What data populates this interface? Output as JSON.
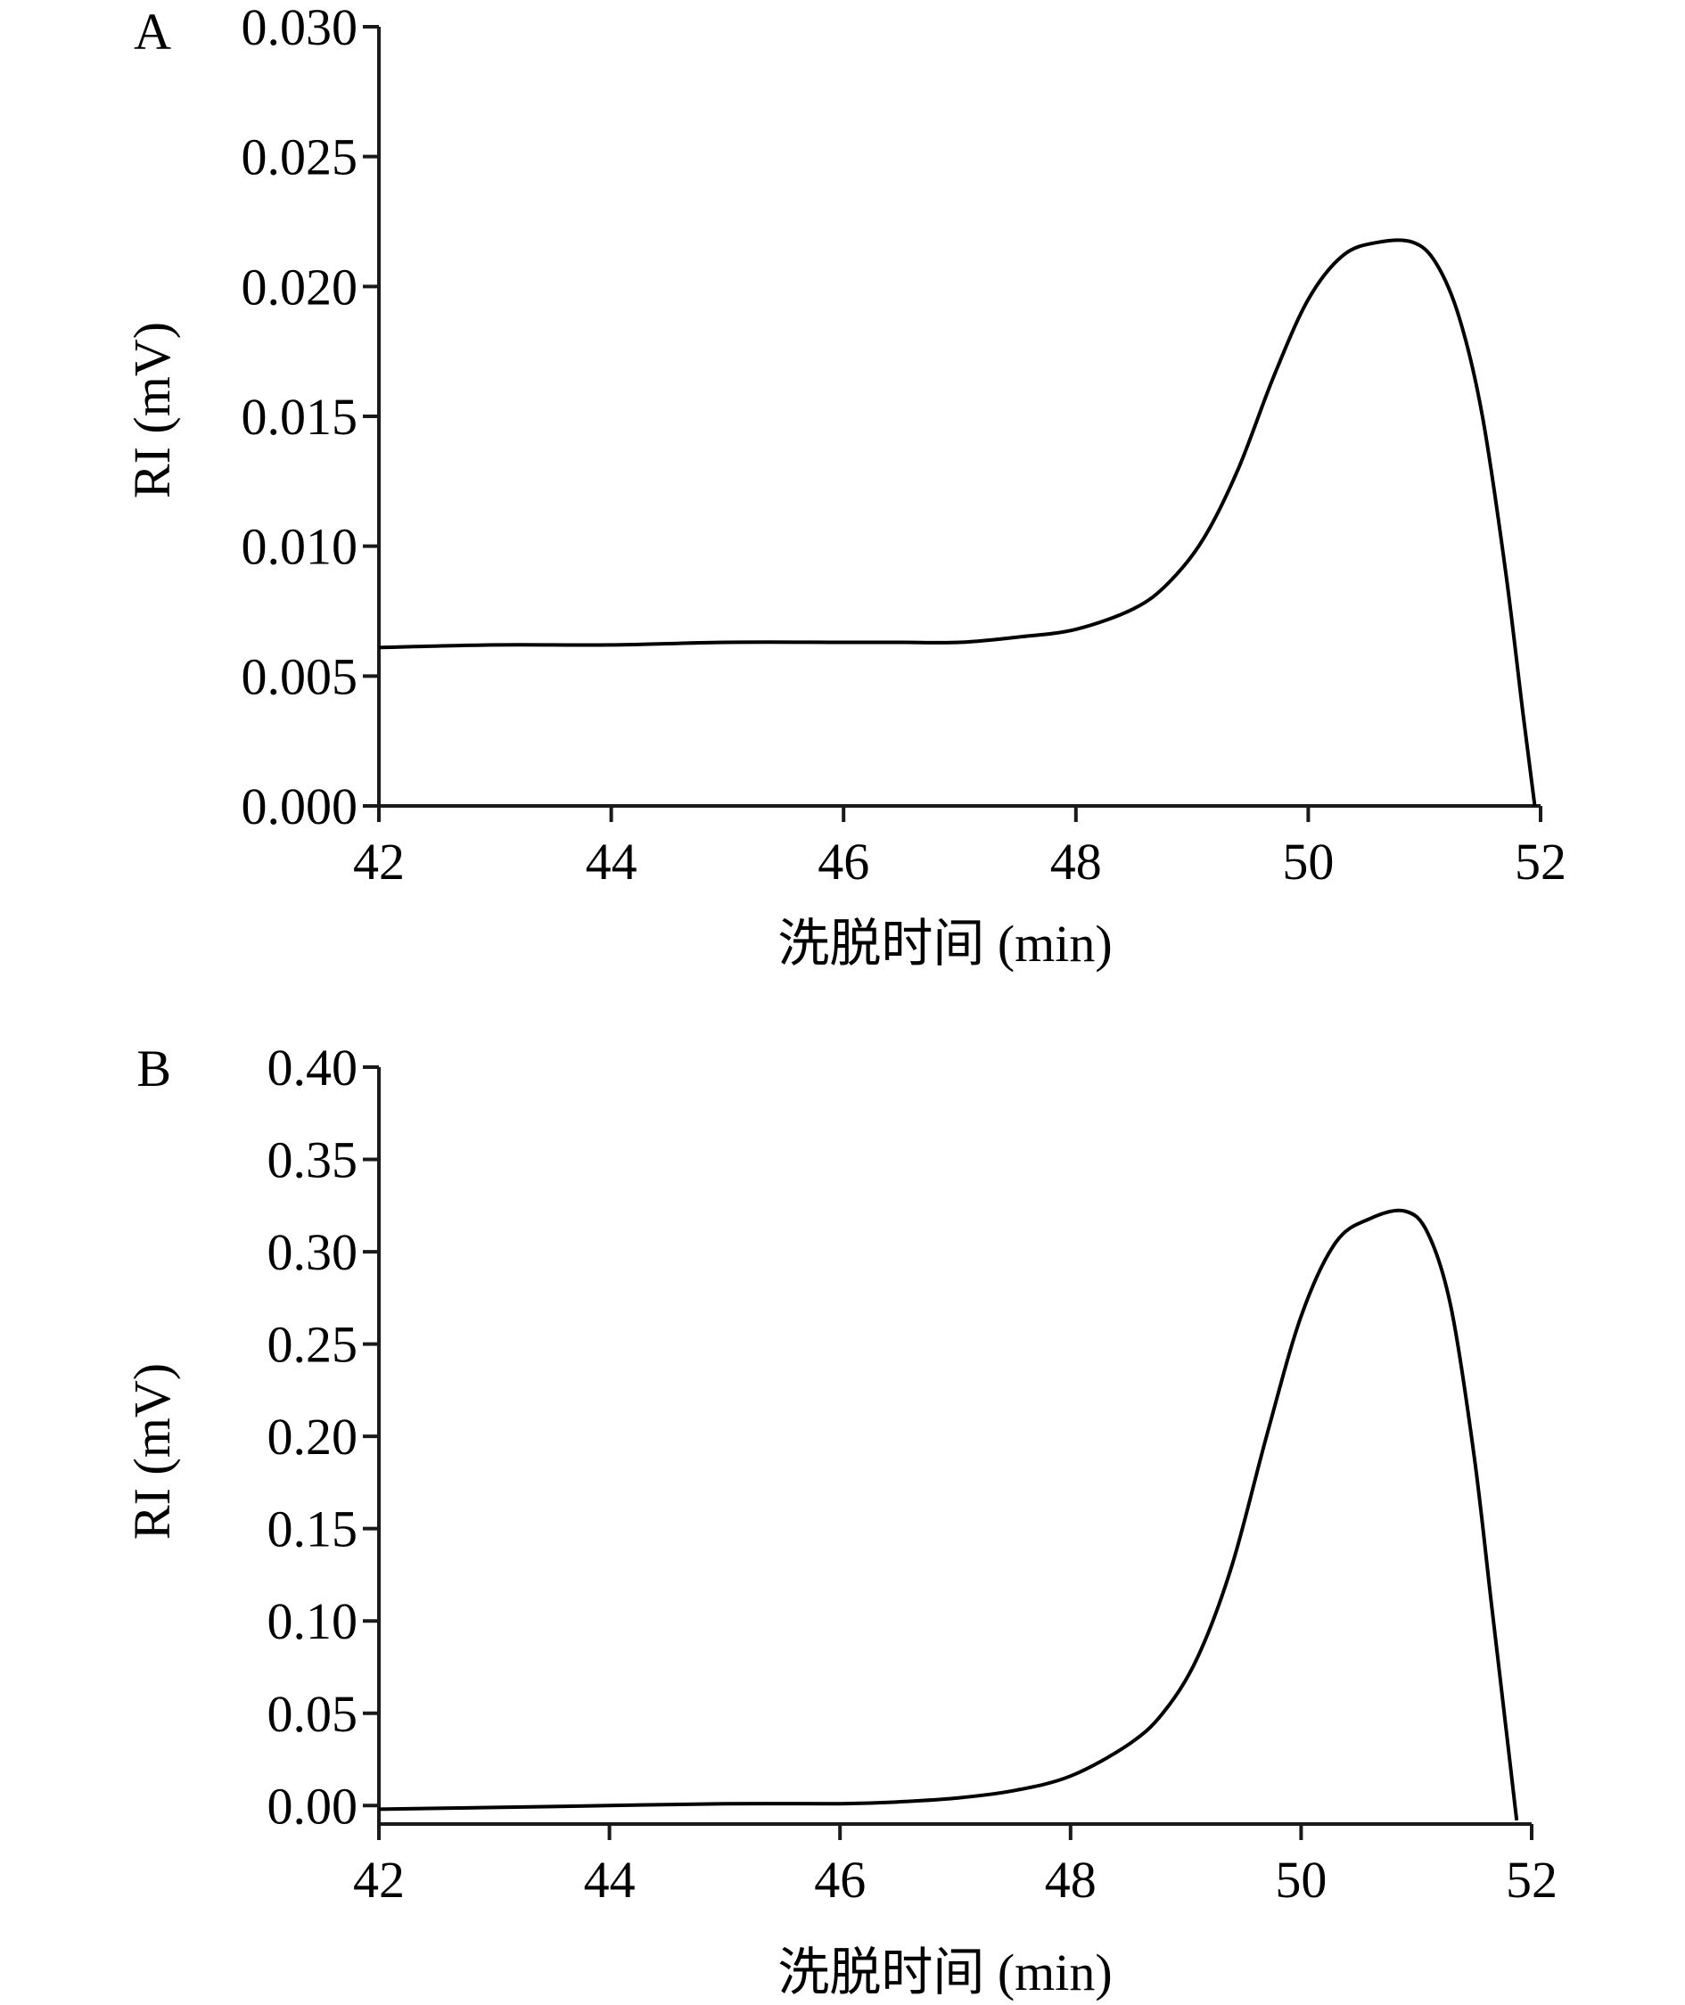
{
  "chart_data": [
    {
      "type": "line",
      "panel_label": "A",
      "xlabel": "洗脱时间 (min)",
      "ylabel": "RI (mV)",
      "xlim": [
        42,
        52
      ],
      "ylim": [
        0,
        0.03
      ],
      "xticks": [
        42,
        44,
        46,
        48,
        50,
        52
      ],
      "xtick_labels": [
        "42",
        "44",
        "46",
        "48",
        "50",
        "52"
      ],
      "yticks": [
        0,
        0.005,
        0.01,
        0.015,
        0.02,
        0.025,
        0.03
      ],
      "ytick_labels": [
        "0.000",
        "0.005",
        "0.010",
        "0.015",
        "0.020",
        "0.025",
        "0.030"
      ],
      "grid": false,
      "series": [
        {
          "x": [
            42.0,
            43.0,
            44.0,
            45.0,
            46.0,
            46.5,
            47.0,
            47.5,
            48.0,
            48.5,
            48.8,
            49.1,
            49.4,
            49.7,
            50.0,
            50.3,
            50.6,
            50.9,
            51.1,
            51.3,
            51.5,
            51.7,
            51.85,
            51.95
          ],
          "y": [
            0.0061,
            0.0062,
            0.0062,
            0.0063,
            0.0063,
            0.0063,
            0.0063,
            0.0065,
            0.0068,
            0.0076,
            0.0086,
            0.0103,
            0.013,
            0.0165,
            0.0195,
            0.0212,
            0.0217,
            0.0217,
            0.0209,
            0.0188,
            0.015,
            0.009,
            0.0035,
            0.0
          ]
        }
      ]
    },
    {
      "type": "line",
      "panel_label": "B",
      "xlabel": "洗脱时间 (min)",
      "ylabel": "RI (mV)",
      "xlim": [
        42,
        52
      ],
      "ylim": [
        -0.01,
        0.4
      ],
      "xticks": [
        42,
        44,
        46,
        48,
        50,
        52
      ],
      "xtick_labels": [
        "42",
        "44",
        "46",
        "48",
        "50",
        "52"
      ],
      "yticks": [
        0,
        0.05,
        0.1,
        0.15,
        0.2,
        0.25,
        0.3,
        0.35,
        0.4
      ],
      "ytick_labels": [
        "0.00",
        "0.05",
        "0.10",
        "0.15",
        "0.20",
        "0.25",
        "0.30",
        "0.35",
        "0.40"
      ],
      "grid": false,
      "series": [
        {
          "x": [
            42.0,
            43.0,
            44.0,
            45.0,
            46.0,
            46.5,
            47.0,
            47.5,
            48.0,
            48.5,
            48.8,
            49.1,
            49.4,
            49.7,
            50.0,
            50.3,
            50.6,
            50.9,
            51.1,
            51.3,
            51.5,
            51.65,
            51.8,
            51.87
          ],
          "y": [
            -0.002,
            -0.001,
            0.0,
            0.001,
            0.001,
            0.002,
            0.004,
            0.008,
            0.016,
            0.033,
            0.05,
            0.08,
            0.13,
            0.2,
            0.265,
            0.305,
            0.318,
            0.322,
            0.31,
            0.27,
            0.19,
            0.11,
            0.03,
            -0.008
          ]
        }
      ]
    }
  ]
}
